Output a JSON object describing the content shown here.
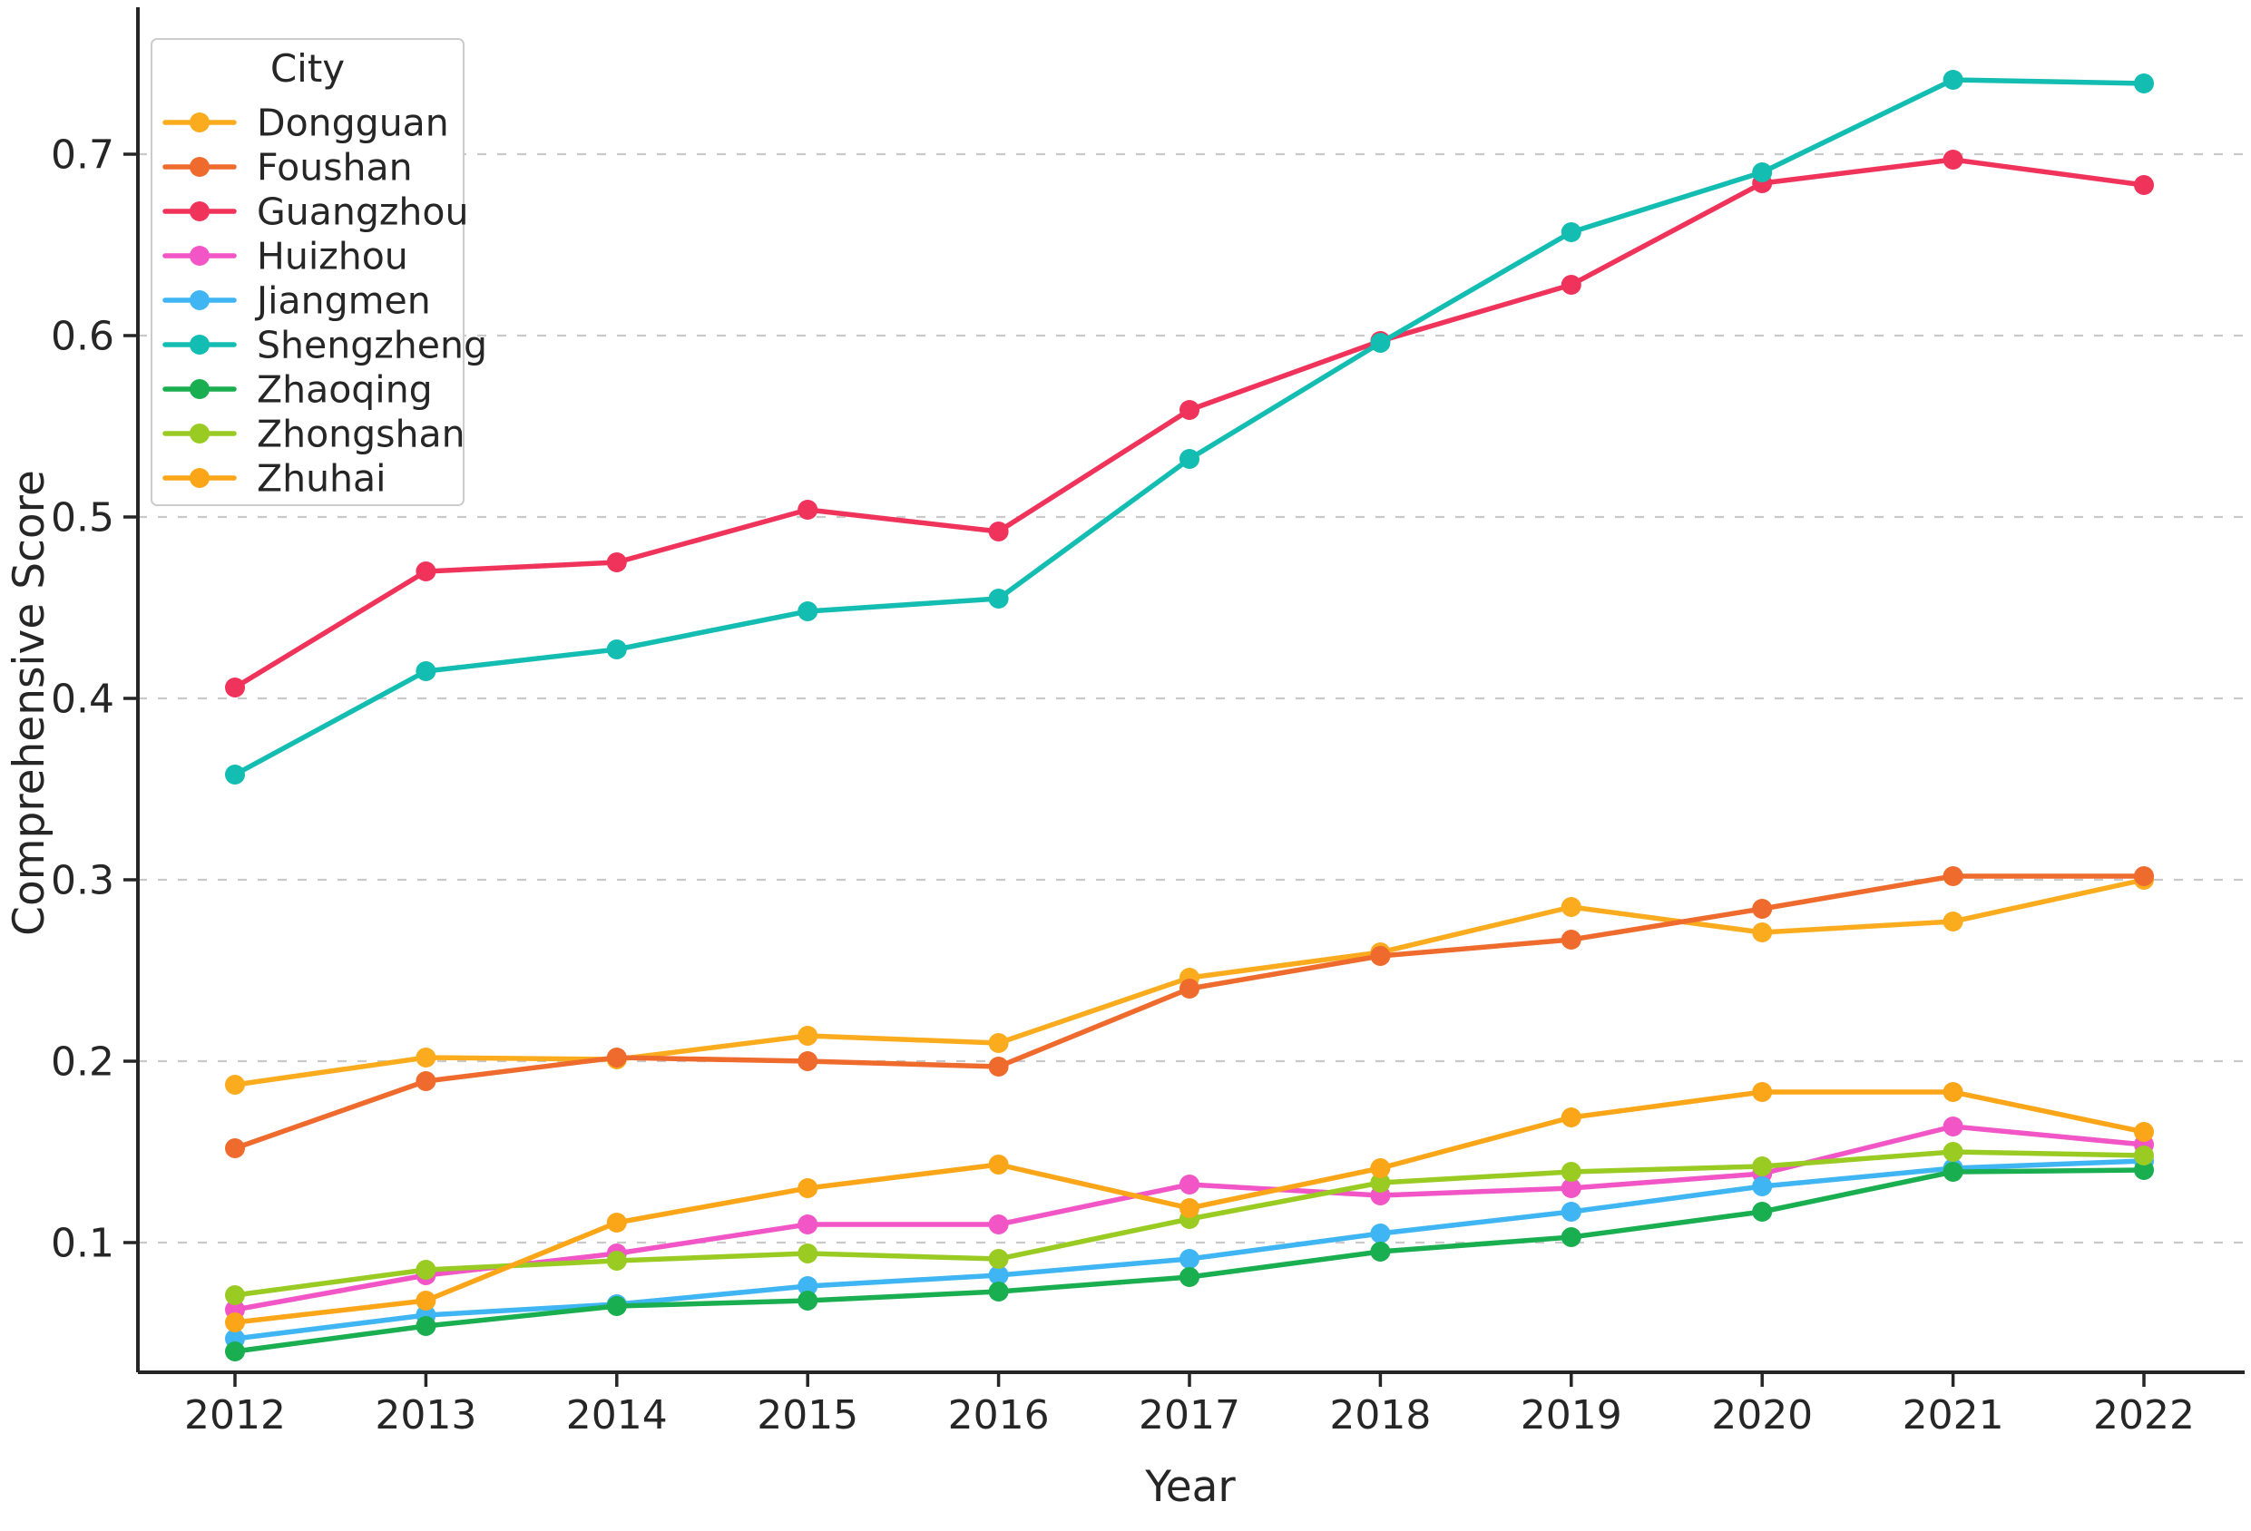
{
  "chart_data": {
    "type": "line",
    "title": "",
    "xlabel": "Year",
    "ylabel": "Comprehensive Score",
    "legend_title": "City",
    "legend_position": "upper left",
    "grid": "horizontal-dashed",
    "x": [
      2012,
      2013,
      2014,
      2015,
      2016,
      2017,
      2018,
      2019,
      2020,
      2021,
      2022
    ],
    "yticks": [
      0.1,
      0.2,
      0.3,
      0.4,
      0.5,
      0.6,
      0.7
    ],
    "ylim": [
      0.028,
      0.78
    ],
    "colors": {
      "axis": "#262626",
      "gridline": "#c9c9c9",
      "legend_border": "#cccccc",
      "background": "#ffffff"
    },
    "series": [
      {
        "name": "Dongguan",
        "color": "#FBAC1E",
        "values": [
          0.187,
          0.202,
          0.201,
          0.214,
          0.21,
          0.246,
          0.26,
          0.285,
          0.271,
          0.277,
          0.3
        ]
      },
      {
        "name": "Foushan",
        "color": "#EE6B2D",
        "values": [
          0.152,
          0.189,
          0.202,
          0.2,
          0.197,
          0.24,
          0.258,
          0.267,
          0.284,
          0.302,
          0.302
        ]
      },
      {
        "name": "Guangzhou",
        "color": "#F0335A",
        "values": [
          0.406,
          0.47,
          0.475,
          0.504,
          0.492,
          0.559,
          0.597,
          0.628,
          0.684,
          0.697,
          0.683
        ]
      },
      {
        "name": "Huizhou",
        "color": "#F155C6",
        "values": [
          0.063,
          0.082,
          0.094,
          0.11,
          0.11,
          0.132,
          0.126,
          0.13,
          0.138,
          0.164,
          0.154
        ]
      },
      {
        "name": "Jiangmen",
        "color": "#3FB5F4",
        "values": [
          0.047,
          0.06,
          0.066,
          0.076,
          0.082,
          0.091,
          0.105,
          0.117,
          0.131,
          0.141,
          0.145
        ]
      },
      {
        "name": "Shengzheng",
        "color": "#13BDB2",
        "values": [
          0.358,
          0.415,
          0.427,
          0.448,
          0.455,
          0.532,
          0.596,
          0.657,
          0.69,
          0.741,
          0.739
        ]
      },
      {
        "name": "Zhaoqing",
        "color": "#19AE4F",
        "values": [
          0.04,
          0.054,
          0.065,
          0.068,
          0.073,
          0.081,
          0.095,
          0.103,
          0.117,
          0.139,
          0.14
        ]
      },
      {
        "name": "Zhongshan",
        "color": "#9ACB22",
        "values": [
          0.071,
          0.085,
          0.09,
          0.094,
          0.091,
          0.113,
          0.133,
          0.139,
          0.142,
          0.15,
          0.148
        ]
      },
      {
        "name": "Zhuhai",
        "color": "#FBA619",
        "values": [
          0.056,
          0.068,
          0.111,
          0.13,
          0.143,
          0.119,
          0.141,
          0.169,
          0.183,
          0.183,
          0.161
        ]
      }
    ]
  }
}
